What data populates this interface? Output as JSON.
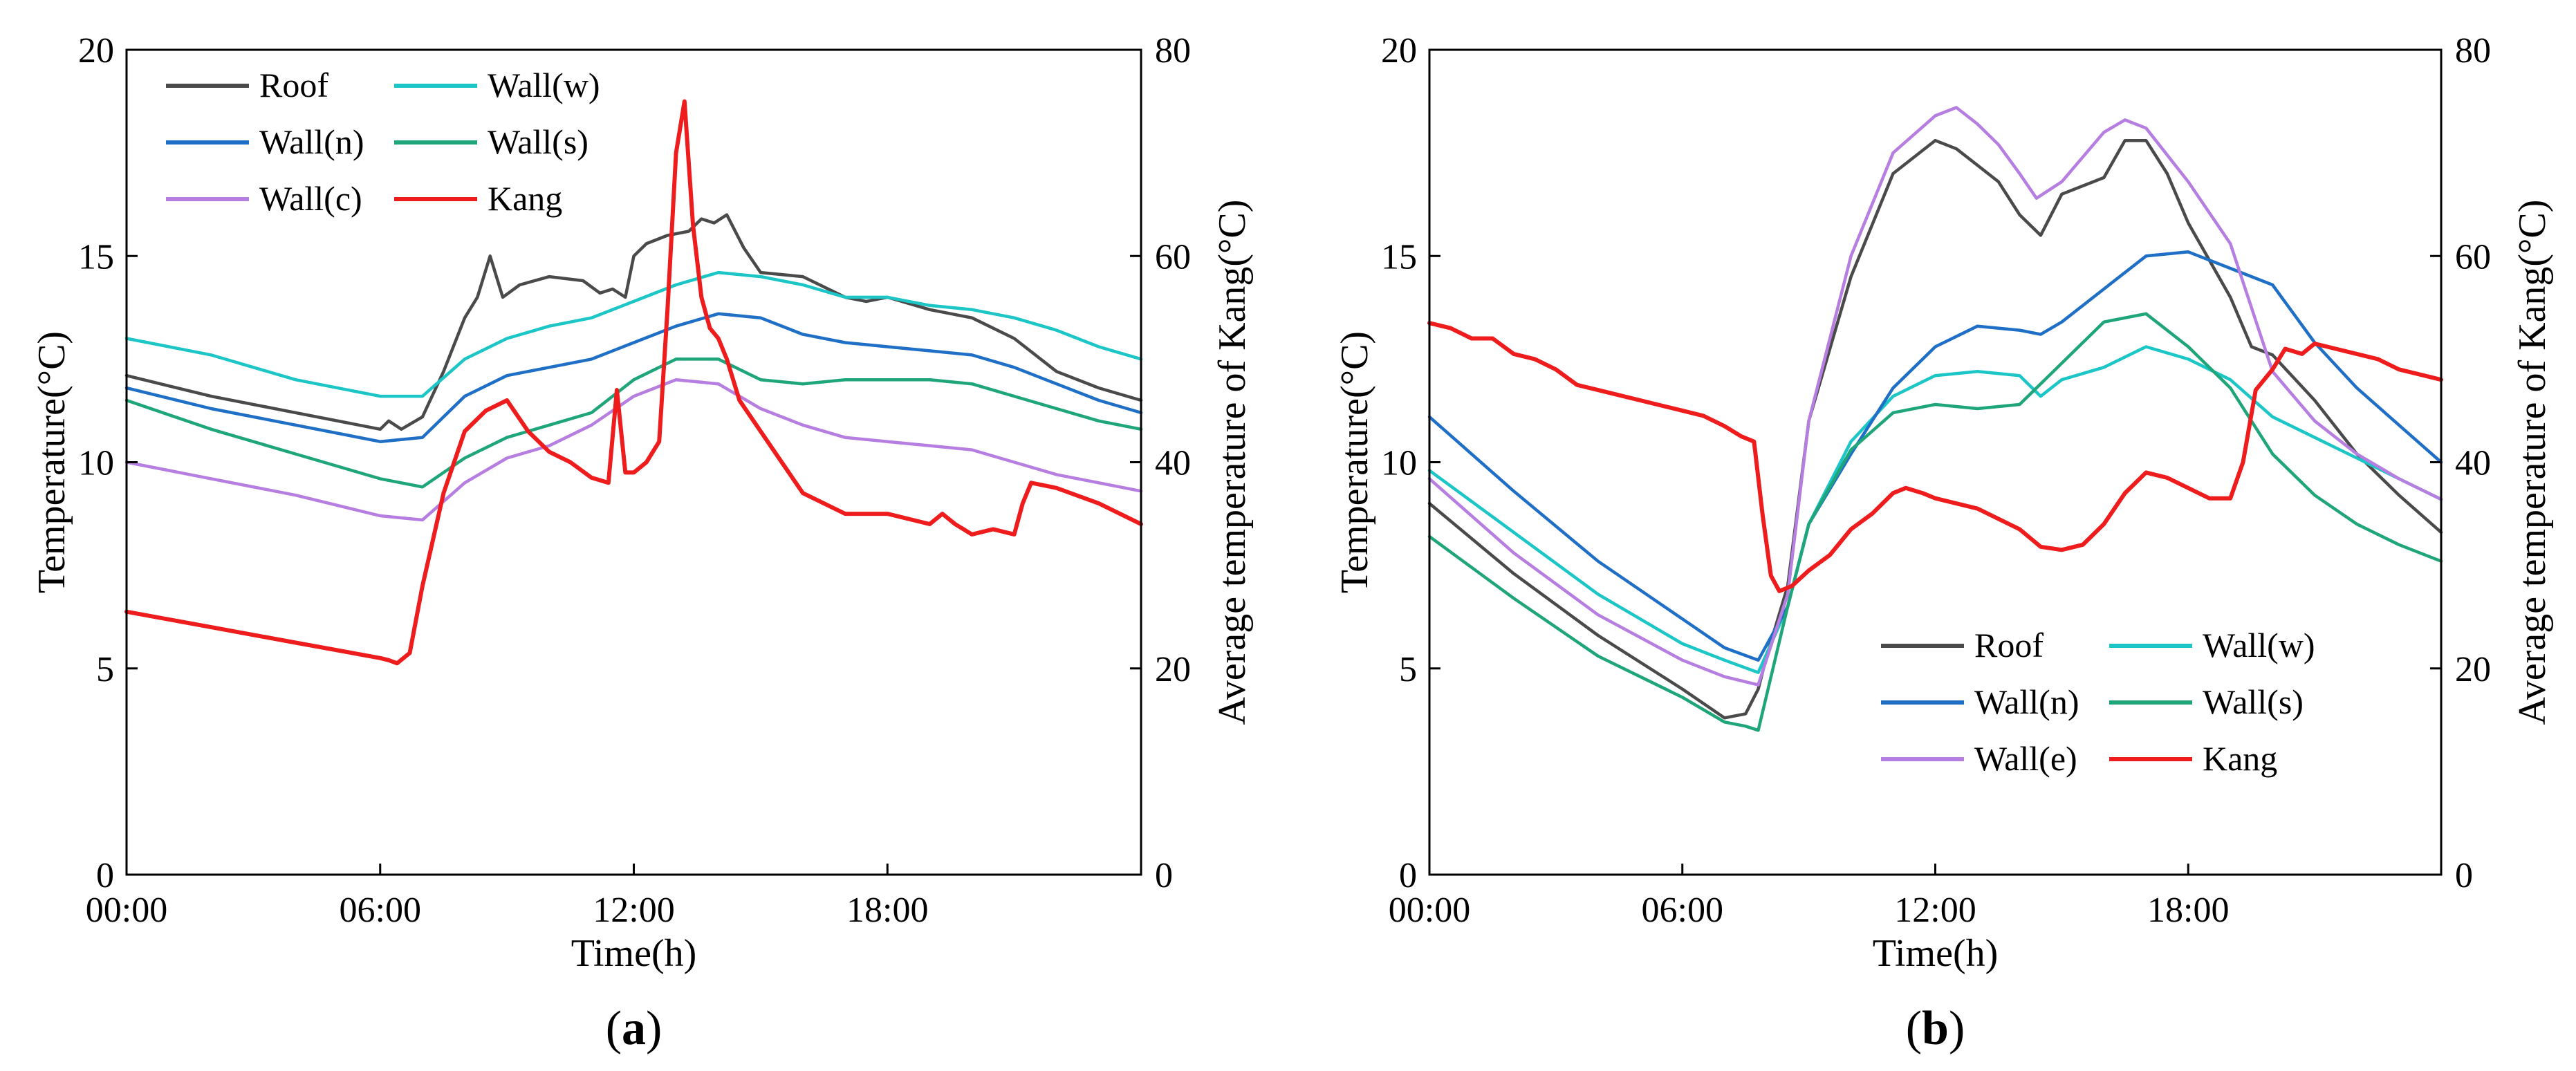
{
  "chart_data": [
    {
      "type": "line",
      "panel": "a",
      "caption_open": "(",
      "caption_letter": "a",
      "caption_close": ")",
      "xlabel": "Time(h)",
      "ylabel": "Temperature(°C)",
      "y2label": "Average temperature of Kang(°C)",
      "xlim": [
        0,
        24
      ],
      "ylim": [
        0,
        20
      ],
      "y2lim": [
        0,
        80
      ],
      "xticks": [
        0,
        6,
        12,
        18
      ],
      "xtick_labels": [
        "00:00",
        "06:00",
        "12:00",
        "18:00"
      ],
      "yticks": [
        0,
        5,
        10,
        15,
        20
      ],
      "ytick_labels": [
        "0",
        "5",
        "10",
        "15",
        "20"
      ],
      "y2ticks": [
        0,
        20,
        40,
        60,
        80
      ],
      "y2tick_labels": [
        "0",
        "20",
        "40",
        "60",
        "80"
      ],
      "legend_position": "top-left",
      "series": [
        {
          "name": "Roof",
          "color": "#4a4a4a",
          "axis": "left",
          "x": [
            0,
            2,
            4,
            6,
            6.2,
            6.5,
            7,
            7.5,
            8,
            8.3,
            8.6,
            8.9,
            9.3,
            10,
            10.8,
            11.2,
            11.5,
            11.8,
            12,
            12.3,
            12.8,
            13.3,
            13.6,
            13.9,
            14.2,
            14.6,
            15,
            16,
            17,
            17.5,
            18,
            19,
            20,
            21,
            22,
            23,
            24
          ],
          "y": [
            12.1,
            11.6,
            11.2,
            10.8,
            11.0,
            10.8,
            11.1,
            12.2,
            13.5,
            14.0,
            15.0,
            14.0,
            14.3,
            14.5,
            14.4,
            14.1,
            14.2,
            14.0,
            15.0,
            15.3,
            15.5,
            15.6,
            15.9,
            15.8,
            16.0,
            15.2,
            14.6,
            14.5,
            14.0,
            13.9,
            14.0,
            13.7,
            13.5,
            13.0,
            12.2,
            11.8,
            11.5
          ]
        },
        {
          "name": "Wall(w)",
          "color": "#1cc6c6",
          "axis": "left",
          "x": [
            0,
            2,
            4,
            6,
            7,
            8,
            9,
            10,
            11,
            12,
            13,
            14,
            15,
            16,
            17,
            18,
            19,
            20,
            21,
            22,
            23,
            24
          ],
          "y": [
            13.0,
            12.6,
            12.0,
            11.6,
            11.6,
            12.5,
            13.0,
            13.3,
            13.5,
            13.9,
            14.3,
            14.6,
            14.5,
            14.3,
            14.0,
            14.0,
            13.8,
            13.7,
            13.5,
            13.2,
            12.8,
            12.5
          ]
        },
        {
          "name": "Wall(n)",
          "color": "#1f6fc6",
          "axis": "left",
          "x": [
            0,
            2,
            4,
            6,
            7,
            8,
            9,
            10,
            11,
            12,
            13,
            14,
            15,
            16,
            17,
            18,
            19,
            20,
            21,
            22,
            23,
            24
          ],
          "y": [
            11.8,
            11.3,
            10.9,
            10.5,
            10.6,
            11.6,
            12.1,
            12.3,
            12.5,
            12.9,
            13.3,
            13.6,
            13.5,
            13.1,
            12.9,
            12.8,
            12.7,
            12.6,
            12.3,
            11.9,
            11.5,
            11.2
          ]
        },
        {
          "name": "Wall(s)",
          "color": "#1fa57a",
          "axis": "left",
          "x": [
            0,
            2,
            4,
            6,
            7,
            8,
            9,
            10,
            11,
            12,
            13,
            14,
            15,
            16,
            17,
            18,
            19,
            20,
            21,
            22,
            23,
            24
          ],
          "y": [
            11.5,
            10.8,
            10.2,
            9.6,
            9.4,
            10.1,
            10.6,
            10.9,
            11.2,
            12.0,
            12.5,
            12.5,
            12.0,
            11.9,
            12.0,
            12.0,
            12.0,
            11.9,
            11.6,
            11.3,
            11.0,
            10.8
          ]
        },
        {
          "name": "Wall(c)",
          "color": "#b57ee0",
          "axis": "left",
          "x": [
            0,
            2,
            4,
            6,
            7,
            8,
            9,
            10,
            11,
            12,
            13,
            14,
            15,
            16,
            17,
            18,
            19,
            20,
            21,
            22,
            23,
            24
          ],
          "y": [
            10.0,
            9.6,
            9.2,
            8.7,
            8.6,
            9.5,
            10.1,
            10.4,
            10.9,
            11.6,
            12.0,
            11.9,
            11.3,
            10.9,
            10.6,
            10.5,
            10.4,
            10.3,
            10.0,
            9.7,
            9.5,
            9.3
          ]
        },
        {
          "name": "Kang",
          "color": "#ee1c1c",
          "axis": "right",
          "x": [
            0,
            2,
            4,
            6,
            6.2,
            6.4,
            6.7,
            7,
            7.5,
            8,
            8.5,
            9,
            9.5,
            10,
            10.5,
            11,
            11.4,
            11.6,
            11.8,
            12,
            12.3,
            12.6,
            12.8,
            13,
            13.2,
            13.4,
            13.6,
            13.8,
            14,
            14.2,
            14.5,
            15,
            15.5,
            16,
            17,
            18,
            19,
            19.3,
            19.6,
            20,
            20.5,
            21,
            21.2,
            21.4,
            22,
            23,
            24
          ],
          "y": [
            25.5,
            24,
            22.5,
            21,
            20.8,
            20.5,
            21.5,
            28,
            37,
            43,
            45,
            46,
            43,
            41,
            40,
            38.5,
            38,
            47,
            39,
            39,
            40,
            42,
            55,
            70,
            75,
            63,
            56,
            53,
            52,
            50,
            46,
            43,
            40,
            37,
            35,
            35,
            34,
            35,
            34,
            33,
            33.5,
            33,
            36,
            38,
            37.5,
            36,
            34
          ]
        }
      ]
    },
    {
      "type": "line",
      "panel": "b",
      "caption_open": "(",
      "caption_letter": "b",
      "caption_close": ")",
      "xlabel": "Time(h)",
      "ylabel": "Temperature(°C)",
      "y2label": "Average temperature of Kang(°C)",
      "xlim": [
        0,
        24
      ],
      "ylim": [
        0,
        20
      ],
      "y2lim": [
        0,
        80
      ],
      "xticks": [
        0,
        6,
        12,
        18
      ],
      "xtick_labels": [
        "00:00",
        "06:00",
        "12:00",
        "18:00"
      ],
      "yticks": [
        0,
        5,
        10,
        15,
        20
      ],
      "ytick_labels": [
        "0",
        "5",
        "10",
        "15",
        "20"
      ],
      "y2ticks": [
        0,
        20,
        40,
        60,
        80
      ],
      "y2tick_labels": [
        "0",
        "20",
        "40",
        "60",
        "80"
      ],
      "legend_position": "bottom-right",
      "series": [
        {
          "name": "Roof",
          "color": "#4a4a4a",
          "axis": "left",
          "x": [
            0,
            2,
            4,
            6,
            7,
            7.5,
            7.8,
            8,
            8.5,
            9,
            10,
            11,
            12,
            12.5,
            13,
            13.5,
            14,
            14.5,
            15,
            16,
            16.5,
            17,
            17.5,
            18,
            19,
            19.5,
            20,
            21,
            22,
            23,
            24
          ],
          "y": [
            9.0,
            7.3,
            5.8,
            4.5,
            3.8,
            3.9,
            4.5,
            5.3,
            7.0,
            11.0,
            14.5,
            17.0,
            17.8,
            17.6,
            17.2,
            16.8,
            16.0,
            15.5,
            16.5,
            16.9,
            17.8,
            17.8,
            17.0,
            15.8,
            14.0,
            12.8,
            12.6,
            11.5,
            10.2,
            9.2,
            8.3
          ]
        },
        {
          "name": "Wall(w)",
          "color": "#1cc6c6",
          "axis": "left",
          "x": [
            0,
            2,
            4,
            6,
            7,
            7.8,
            8.5,
            9,
            10,
            11,
            12,
            13,
            14,
            14.5,
            15,
            16,
            17,
            18,
            19,
            20,
            21,
            22,
            23,
            24
          ],
          "y": [
            9.8,
            8.3,
            6.8,
            5.6,
            5.2,
            4.9,
            6.5,
            8.5,
            10.5,
            11.6,
            12.1,
            12.2,
            12.1,
            11.6,
            12.0,
            12.3,
            12.8,
            12.5,
            12.0,
            11.1,
            10.6,
            10.1,
            9.6,
            9.1
          ]
        },
        {
          "name": "Wall(n)",
          "color": "#1f6fc6",
          "axis": "left",
          "x": [
            0,
            2,
            4,
            6,
            7,
            7.8,
            8.5,
            9,
            10,
            11,
            12,
            13,
            14,
            14.5,
            15,
            16,
            17,
            18,
            19,
            20,
            21,
            22,
            23,
            24
          ],
          "y": [
            11.1,
            9.3,
            7.6,
            6.2,
            5.5,
            5.2,
            6.5,
            8.5,
            10.2,
            11.8,
            12.8,
            13.3,
            13.2,
            13.1,
            13.4,
            14.2,
            15.0,
            15.1,
            14.7,
            14.3,
            12.9,
            11.8,
            10.9,
            10.0
          ]
        },
        {
          "name": "Wall(s)",
          "color": "#1fa57a",
          "axis": "left",
          "x": [
            0,
            2,
            4,
            6,
            7,
            7.5,
            7.8,
            8.5,
            9,
            10,
            11,
            12,
            13,
            14,
            15,
            16,
            17,
            18,
            19,
            20,
            21,
            22,
            23,
            24
          ],
          "y": [
            8.2,
            6.7,
            5.3,
            4.3,
            3.7,
            3.6,
            3.5,
            6.5,
            8.5,
            10.3,
            11.2,
            11.4,
            11.3,
            11.4,
            12.4,
            13.4,
            13.6,
            12.8,
            11.8,
            10.2,
            9.2,
            8.5,
            8.0,
            7.6
          ]
        },
        {
          "name": "Wall(e)",
          "color": "#b57ee0",
          "axis": "left",
          "x": [
            0,
            2,
            4,
            6,
            7,
            7.8,
            8.5,
            9,
            10,
            11,
            12,
            12.5,
            13,
            13.5,
            14,
            14.4,
            15,
            16,
            16.5,
            17,
            18,
            19,
            20,
            21,
            22,
            23,
            24
          ],
          "y": [
            9.6,
            7.8,
            6.3,
            5.2,
            4.8,
            4.6,
            6.8,
            11.0,
            15.0,
            17.5,
            18.4,
            18.6,
            18.2,
            17.7,
            17.0,
            16.4,
            16.8,
            18.0,
            18.3,
            18.1,
            16.8,
            15.3,
            12.2,
            11.0,
            10.2,
            9.6,
            9.1
          ]
        },
        {
          "name": "Kang",
          "color": "#ee1c1c",
          "axis": "right",
          "x": [
            0,
            0.5,
            1,
            1.5,
            2,
            2.5,
            3,
            3.5,
            4,
            4.5,
            5,
            5.5,
            6,
            6.5,
            7,
            7.4,
            7.7,
            7.9,
            8.1,
            8.3,
            8.6,
            9,
            9.5,
            10,
            10.5,
            11,
            11.3,
            11.7,
            12,
            13,
            14,
            14.5,
            15,
            15.5,
            16,
            16.5,
            17,
            17.5,
            18,
            18.5,
            19,
            19.3,
            19.6,
            20,
            20.3,
            20.7,
            21,
            21.5,
            22,
            22.5,
            23,
            23.5,
            24
          ],
          "y": [
            53.5,
            53,
            52,
            52,
            50.5,
            50,
            49,
            47.5,
            47,
            46.5,
            46,
            45.5,
            45,
            44.5,
            43.5,
            42.5,
            42,
            35,
            29,
            27.5,
            28,
            29.5,
            31,
            33.5,
            35,
            37,
            37.5,
            37,
            36.5,
            35.5,
            33.5,
            31.8,
            31.5,
            32,
            34,
            37,
            39,
            38.5,
            37.5,
            36.5,
            36.5,
            40,
            47,
            49,
            51,
            50.5,
            51.5,
            51,
            50.5,
            50,
            49,
            48.5,
            48
          ]
        }
      ]
    }
  ]
}
